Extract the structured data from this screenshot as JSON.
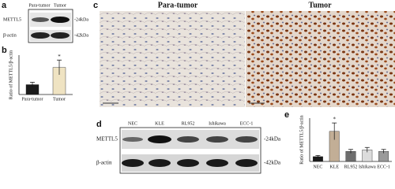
{
  "panel_labels": [
    "a",
    "b",
    "c",
    "d",
    "e"
  ],
  "blot_a": {
    "lanes": [
      "Para-tumor",
      "Tumor"
    ],
    "rows": [
      "METTL5",
      "β-actin"
    ],
    "sizes": [
      "-24kDa",
      "-42kDa"
    ]
  },
  "images_c": {
    "titles": [
      "Para-tumor",
      "Tumor"
    ]
  },
  "blot_d": {
    "lanes": [
      "NEC",
      "KLE",
      "RL952",
      "Ishikawa",
      "ECC-1"
    ],
    "rows": [
      "METTL5",
      "β-actin"
    ],
    "sizes": [
      "-24kDa",
      "-42kDa"
    ]
  },
  "chart_data": [
    {
      "type": "bar",
      "y_label": "Ratio of METTL5/β-actin",
      "categories": [
        "Para-tumor",
        "Tumor"
      ],
      "values": [
        0.4,
        1.1
      ],
      "errors": [
        0.1,
        0.3
      ],
      "colors": [
        "#1a1a1a",
        "#efe3c2"
      ],
      "annotation": "*",
      "annotation_index": 1,
      "ylim": [
        0,
        1.6
      ]
    },
    {
      "type": "bar",
      "y_label": "Ratio of METTL5/β-actin",
      "categories": [
        "NEC",
        "KLE",
        "RL952",
        "Ishikawa",
        "ECC-1"
      ],
      "values": [
        0.2,
        1.25,
        0.42,
        0.48,
        0.42
      ],
      "errors": [
        0.05,
        0.35,
        0.08,
        0.1,
        0.08
      ],
      "colors": [
        "#1a1a1a",
        "#c2ae96",
        "#6e6e6e",
        "#dcdcdc",
        "#9a9a9a"
      ],
      "annotation": "*",
      "annotation_index": 1,
      "ylim": [
        0,
        1.8
      ]
    }
  ]
}
